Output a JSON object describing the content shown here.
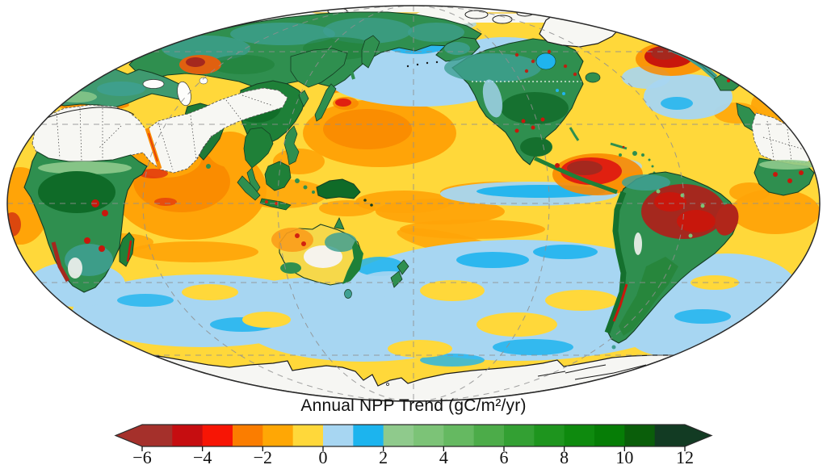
{
  "figure": {
    "title": "Annual NPP Trend (gC/m²/yr)"
  },
  "colorbar": {
    "min": -6,
    "max": 12,
    "tick_values": [
      -6,
      -4,
      -2,
      0,
      2,
      4,
      6,
      8,
      10,
      12
    ],
    "tick_labels": [
      "−6",
      "−4",
      "−2",
      "0",
      "2",
      "4",
      "6",
      "8",
      "10",
      "12"
    ],
    "segment_colors": [
      "#A5302B",
      "#C60D10",
      "#F71505",
      "#FB7D00",
      "#FFA705",
      "#FFD83A",
      "#A7D6F2",
      "#1CB4EE",
      "#8FCA8C",
      "#7CC377",
      "#65B961",
      "#4CAC49",
      "#33A033",
      "#1E951E",
      "#0E8A0E",
      "#067D06",
      "#0A5E0A",
      "#123B23"
    ],
    "extend_left_color": "#A5302B",
    "extend_right_color": "#123B23",
    "outline_color": "#2a2a2a"
  },
  "chart_data": {
    "type": "heatmap",
    "title": "Annual NPP Trend (gC/m²/yr)",
    "units": "gC/m²/yr",
    "scale_range": [
      -6,
      12
    ],
    "scale_step": 1,
    "colorbar_ticks": [
      -6,
      -4,
      -2,
      0,
      2,
      4,
      6,
      8,
      10,
      12
    ],
    "projection": "mollweide",
    "extended_both_ends": true
  },
  "map": {
    "projection": "mollweide",
    "palette": {
      "ocean_neutral_yellow": "#FFD83A",
      "decline_orange": "#FFA408",
      "decline_deep_orange": "#F98A00",
      "decline_red": "#E02010",
      "decline_brick": "#A5281E",
      "increase_light_blue": "#A7D6F2",
      "increase_cyan": "#1FB4EE",
      "increase_green": "#2F8F4F",
      "increase_dark_green": "#15702E",
      "increase_teal": "#3FA093",
      "increase_sage": "#8FCA8C",
      "no_data_white": "#F7F7F3",
      "coastline": "#1a1a1a",
      "graticule": "#909090"
    },
    "notable_features": [
      "antarctica-no-data",
      "greenland-no-data",
      "sahara-arabia-tibet-no-data",
      "amazon-browning-red",
      "el-nino-east-pacific-red",
      "north-atlantic-red",
      "kazakhstan-red",
      "indian-ocean-orange",
      "northwest-pacific-orange",
      "southern-ocean-light-blue",
      "north-pacific-light-blue",
      "equatorial-pacific-cyan"
    ]
  }
}
